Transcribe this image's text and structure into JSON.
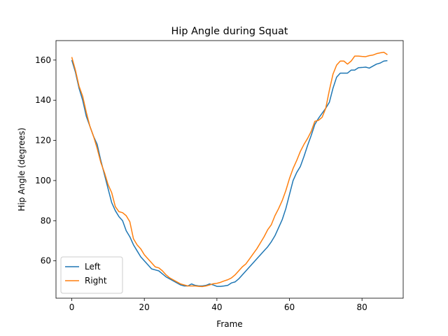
{
  "chart_data": {
    "type": "line",
    "title": "Hip Angle during Squat",
    "x_label": "Frame",
    "y_label": "Hip Angle (degrees)",
    "x": [
      0,
      1,
      2,
      3,
      4,
      5,
      6,
      7,
      8,
      9,
      10,
      11,
      12,
      13,
      14,
      15,
      16,
      17,
      18,
      19,
      20,
      21,
      22,
      23,
      24,
      25,
      26,
      27,
      28,
      29,
      30,
      31,
      32,
      33,
      34,
      35,
      36,
      37,
      38,
      39,
      40,
      41,
      42,
      43,
      44,
      45,
      46,
      47,
      48,
      49,
      50,
      51,
      52,
      53,
      54,
      55,
      56,
      57,
      58,
      59,
      60,
      61,
      62,
      63,
      64,
      65,
      66,
      67,
      68,
      69,
      70,
      71,
      72,
      73,
      74,
      75,
      76,
      77,
      78,
      79,
      80,
      81,
      82,
      83,
      84,
      85,
      86,
      87
    ],
    "series": [
      {
        "name": "Left",
        "color": "#1f77b4",
        "values": [
          160,
          154,
          146,
          140,
          132,
          127,
          122,
          118,
          110,
          103,
          96,
          89,
          85,
          82,
          80,
          75,
          72,
          68,
          65,
          62,
          60,
          58,
          56,
          55.5,
          55,
          53.5,
          52,
          51,
          50,
          49,
          48,
          47.5,
          47.5,
          48.5,
          47.8,
          47.5,
          47.5,
          47.8,
          48.5,
          48,
          47.3,
          47.3,
          47.5,
          47.8,
          49,
          49.5,
          51,
          53,
          55,
          57,
          59,
          61,
          63,
          65,
          67,
          69.5,
          72.5,
          76.5,
          80.5,
          86,
          93,
          100,
          104,
          107,
          112,
          117.5,
          122.5,
          128,
          131,
          133.5,
          136,
          139,
          146,
          151.5,
          153.5,
          153.5,
          153.5,
          155,
          155,
          156.2,
          156.3,
          156.5,
          156,
          157,
          158,
          158.5,
          159.5,
          159.7
        ]
      },
      {
        "name": "Right",
        "color": "#ff7f0e",
        "values": [
          161.5,
          155,
          147,
          142,
          134,
          127,
          122,
          116,
          109,
          104,
          98,
          94,
          87,
          84.5,
          84,
          82.5,
          79.5,
          71,
          68,
          66,
          63,
          61,
          59,
          57,
          56.5,
          55,
          53,
          51.5,
          50.5,
          49.5,
          48.5,
          48,
          47.5,
          47.5,
          47.5,
          47.3,
          47.2,
          47.5,
          48,
          48.6,
          48.8,
          49.3,
          50,
          50.6,
          51.5,
          53,
          55,
          57,
          58.5,
          61,
          63.5,
          66,
          69,
          72,
          75.5,
          78,
          82.5,
          86,
          90,
          95,
          101,
          106,
          110,
          114.5,
          118,
          121,
          124.5,
          129.5,
          130,
          131.5,
          136,
          145,
          153,
          157.5,
          159.5,
          159.5,
          158,
          159.5,
          162,
          162,
          161.8,
          161.7,
          162.2,
          162.5,
          163.2,
          163.6,
          163.9,
          162.7
        ]
      }
    ],
    "xlim": [
      -4.35,
      91.35
    ],
    "ylim": [
      41.4,
      169.7
    ],
    "xticks": [
      0,
      20,
      40,
      60,
      80
    ],
    "yticks": [
      60,
      80,
      100,
      120,
      140,
      160
    ],
    "legend": "lower left"
  }
}
